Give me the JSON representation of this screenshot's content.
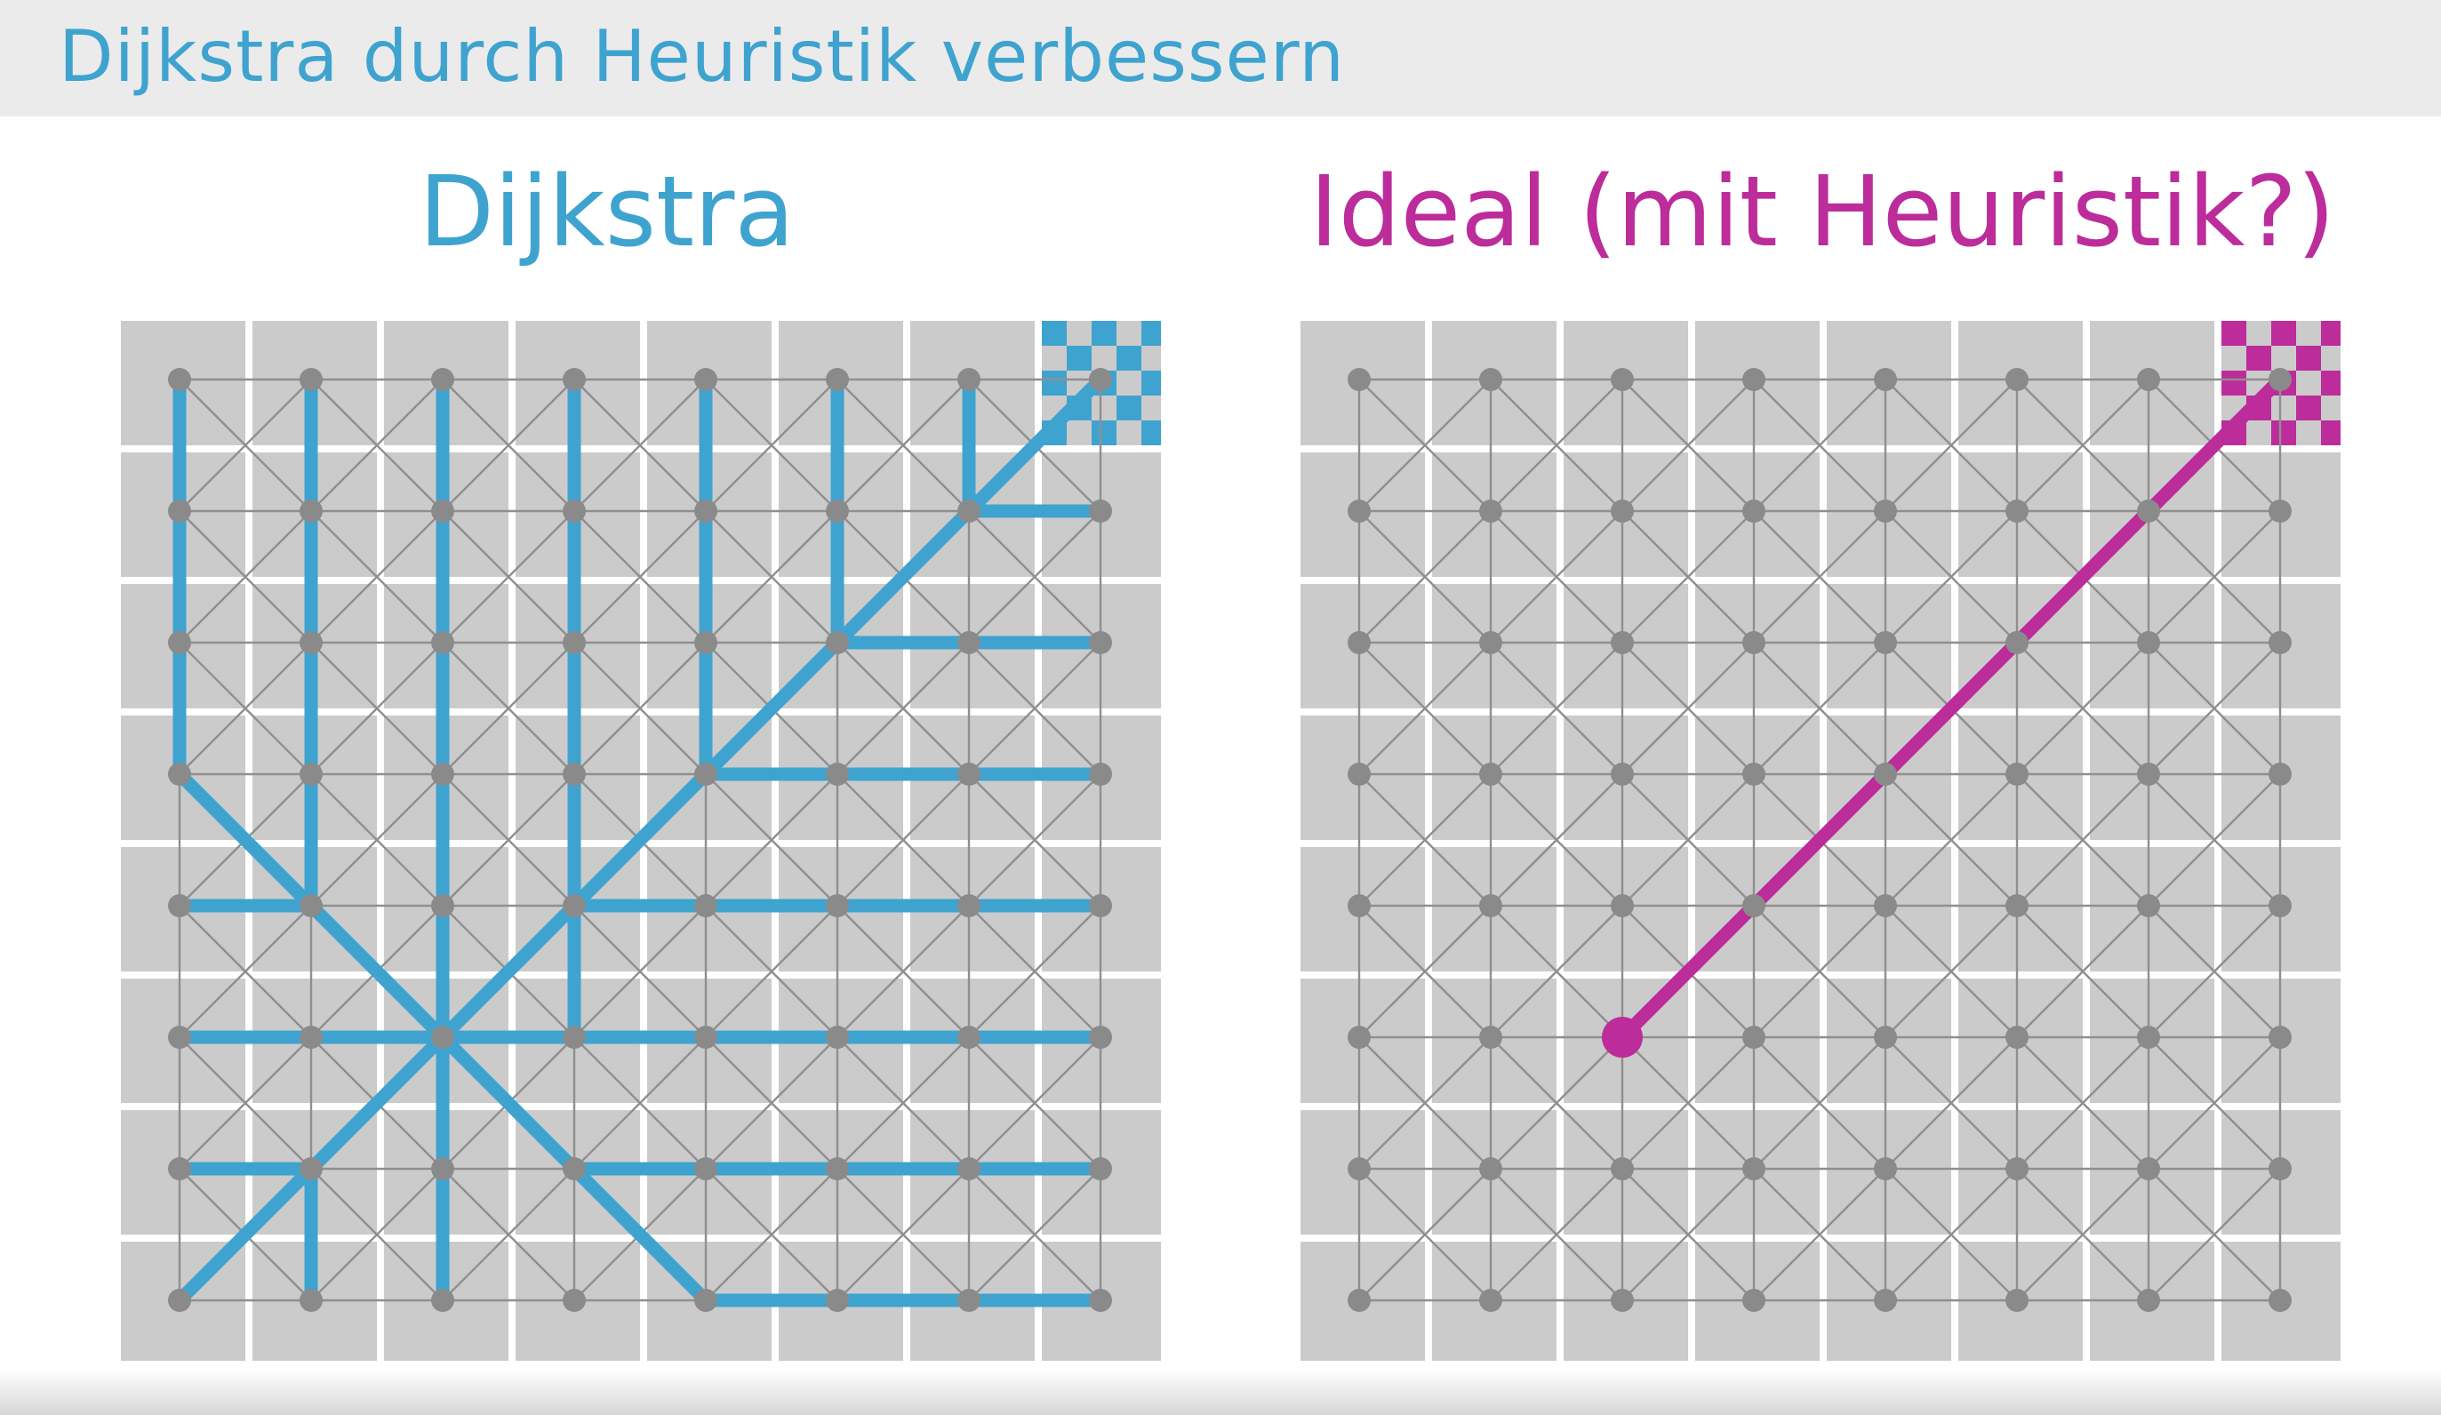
{
  "header": {
    "title": "Dijkstra durch Heuristik verbessern"
  },
  "colors": {
    "dijkstra": "#3fa3cf",
    "ideal": "#bc2c9a",
    "cell": "#cbcbcb",
    "edge": "#8f8f8f",
    "node": "#8a8a8a"
  },
  "panels": [
    {
      "title": "Dijkstra",
      "grid_size": 8,
      "goal_cell": [
        7,
        0
      ],
      "goal_style": "checker",
      "path_color": "#3fa3cf",
      "tree_edges": [
        [
          0,
          0,
          0,
          3
        ],
        [
          1,
          0,
          1,
          4
        ],
        [
          2,
          0,
          2,
          7
        ],
        [
          3,
          0,
          3,
          5
        ],
        [
          4,
          0,
          4,
          3
        ],
        [
          5,
          0,
          5,
          2
        ],
        [
          6,
          0,
          6,
          1
        ],
        [
          2,
          5,
          7,
          0
        ],
        [
          6,
          1,
          7,
          1
        ],
        [
          5,
          2,
          7,
          2
        ],
        [
          4,
          3,
          7,
          3
        ],
        [
          3,
          4,
          7,
          4
        ],
        [
          2,
          5,
          7,
          5
        ],
        [
          0,
          3,
          2,
          5
        ],
        [
          0,
          4,
          1,
          4
        ],
        [
          0,
          5,
          2,
          5
        ],
        [
          2,
          5,
          0,
          7
        ],
        [
          0,
          6,
          1,
          6
        ],
        [
          1,
          6,
          1,
          7
        ],
        [
          2,
          5,
          4,
          7
        ],
        [
          4,
          7,
          7,
          7
        ],
        [
          3,
          6,
          7,
          6
        ]
      ],
      "highlight_nodes": []
    },
    {
      "title": "Ideal (mit Heuristik?)",
      "grid_size": 8,
      "goal_cell": [
        7,
        0
      ],
      "goal_style": "checker",
      "path_color": "#bc2c9a",
      "tree_edges": [
        [
          2,
          5,
          7,
          0
        ]
      ],
      "highlight_nodes": [
        [
          2,
          5
        ]
      ]
    }
  ]
}
